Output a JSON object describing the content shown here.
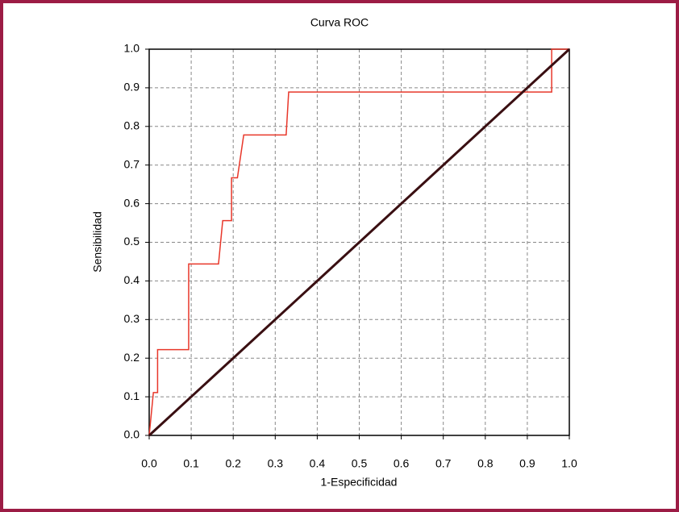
{
  "chart_data": {
    "type": "line",
    "title": "Curva ROC",
    "x_label": "1-Especificidad",
    "y_label": "Sensibilidad",
    "xlim": [
      0,
      1
    ],
    "ylim": [
      0,
      1
    ],
    "xticks": [
      {
        "value": 0,
        "label": "0.0"
      },
      0.1,
      0.2,
      0.3,
      0.4,
      0.5,
      0.6,
      0.7,
      0.8,
      0.9,
      {
        "value": 1,
        "label": "1.0"
      }
    ],
    "yticks": [
      {
        "value": 0,
        "label": "0.0"
      },
      0.1,
      0.2,
      0.3,
      0.4,
      0.5,
      0.6,
      0.7,
      0.8,
      0.9,
      {
        "value": 1,
        "label": "1.0"
      }
    ],
    "grid": true,
    "series": [
      {
        "color": "#e8372a",
        "width": 1.5,
        "x": [
          0,
          0.01,
          0.01,
          0.02,
          0.02,
          0.094,
          0.094,
          0.165,
          0.175,
          0.175,
          0.196,
          0.196,
          0.21,
          0.225,
          0.326,
          0.332,
          0.958,
          0.958,
          1.0
        ],
        "values": [
          0,
          0.111,
          0.111,
          0.111,
          0.222,
          0.222,
          0.444,
          0.444,
          0.556,
          0.556,
          0.556,
          0.667,
          0.667,
          0.778,
          0.778,
          0.889,
          0.889,
          1.0,
          1.0
        ]
      },
      {
        "color": "#3a0f12",
        "width": 3,
        "x": [
          0,
          1
        ],
        "values": [
          0,
          1
        ]
      }
    ]
  }
}
